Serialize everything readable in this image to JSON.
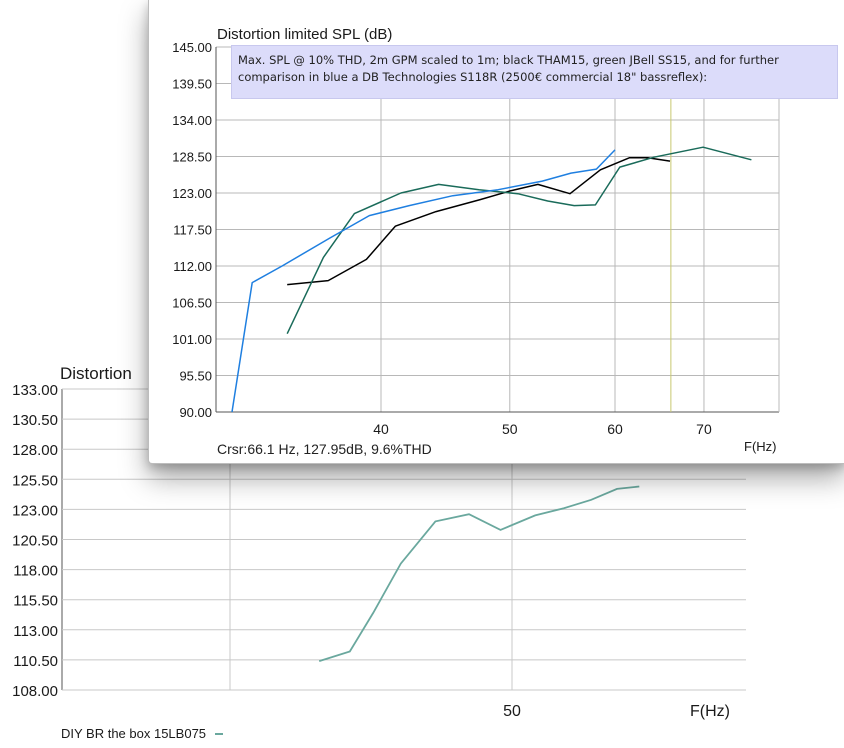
{
  "chart_data": [
    {
      "type": "line",
      "title": "Distortion",
      "xlabel": "F(Hz)",
      "ylabel": "",
      "xscale": "log",
      "ylim": [
        108.0,
        133.0
      ],
      "y_ticks": [
        "133.00",
        "130.50",
        "128.00",
        "125.50",
        "123.00",
        "120.50",
        "118.00",
        "115.50",
        "113.00",
        "110.50",
        "108.00"
      ],
      "x_ticks": [
        {
          "x": 50,
          "label": "50"
        }
      ],
      "grid": true,
      "series": [
        {
          "color": "#6aa89e",
          "x": [
            34.4,
            36.5,
            38.2,
            40.3,
            43.1,
            46.0,
            48.9,
            52.3,
            55.3,
            58.3,
            61.3,
            64.0
          ],
          "y": [
            110.4,
            111.2,
            114.4,
            118.5,
            122.0,
            122.6,
            121.3,
            122.5,
            123.1,
            123.8,
            124.7,
            124.9
          ]
        }
      ],
      "caption": "DIY BR the box 15LB075"
    },
    {
      "type": "line",
      "title": "Distortion limited SPL (dB)",
      "xlabel": "F(Hz)",
      "ylabel": "",
      "xscale": "log",
      "ylim": [
        90.0,
        145.0
      ],
      "y_ticks": [
        "145.00",
        "139.50",
        "134.00",
        "128.50",
        "123.00",
        "117.50",
        "112.00",
        "106.50",
        "101.00",
        "95.50",
        "90.00"
      ],
      "x_ticks": [
        {
          "x": 40,
          "label": "40"
        },
        {
          "x": 50,
          "label": "50"
        },
        {
          "x": 60,
          "label": "60"
        },
        {
          "x": 70,
          "label": "70"
        }
      ],
      "grid": true,
      "note": [
        "Max. SPL @ 10% THD, 2m GPM scaled to 1m; black THAM15, green JBell SS15, and for further",
        "comparison in blue a DB Technologies S118R (2500€ commercial 18\" bassreflex):"
      ],
      "cursor": {
        "x": 66.1,
        "color": "#c8c870",
        "readout": "Crsr:66.1 Hz, 127.95dB, 9.6%THD"
      },
      "series": [
        {
          "color": "#000000",
          "x": [
            34.0,
            36.5,
            39.0,
            41.0,
            44.0,
            47.5,
            50.0,
            52.5,
            55.5,
            58.5,
            61.5,
            63.5,
            66.0
          ],
          "y": [
            109.2,
            109.8,
            113.0,
            118.0,
            120.2,
            122.0,
            123.3,
            124.3,
            122.9,
            126.5,
            128.3,
            128.3,
            127.8
          ]
        },
        {
          "color": "#1a6b5a",
          "x": [
            34.0,
            36.2,
            38.2,
            41.4,
            44.2,
            47.4,
            50.7,
            53.4,
            55.9,
            58.0,
            60.5,
            64.2,
            69.9,
            76.0
          ],
          "y": [
            101.8,
            113.3,
            119.9,
            123.0,
            124.3,
            123.5,
            122.9,
            121.8,
            121.1,
            121.2,
            126.9,
            128.4,
            129.9,
            128.0
          ]
        },
        {
          "color": "#1f7fe0",
          "x": [
            30.9,
            32.0,
            33.7,
            36.6,
            39.2,
            42.0,
            45.3,
            49.0,
            52.9,
            55.6,
            58.1,
            60.0
          ],
          "y": [
            90.0,
            109.5,
            112.0,
            116.2,
            119.6,
            121.1,
            122.6,
            123.5,
            124.8,
            126.0,
            126.6,
            129.5
          ]
        }
      ]
    }
  ]
}
